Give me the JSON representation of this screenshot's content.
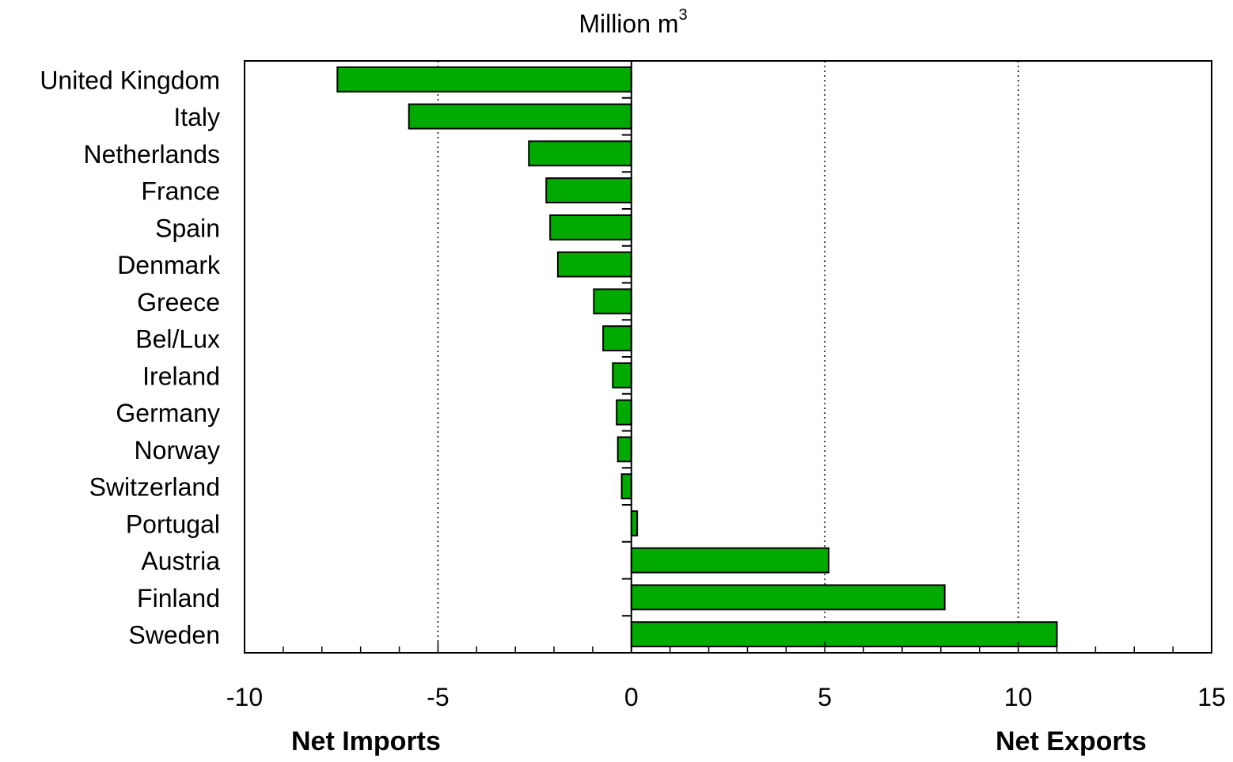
{
  "chart_data": {
    "type": "bar",
    "orientation": "horizontal",
    "title": "Million m",
    "title_superscript": "3",
    "categories": [
      "United Kingdom",
      "Italy",
      "Netherlands",
      "France",
      "Spain",
      "Denmark",
      "Greece",
      "Bel/Lux",
      "Ireland",
      "Germany",
      "Norway",
      "Switzerland",
      "Portugal",
      "Austria",
      "Finland",
      "Sweden"
    ],
    "values": [
      -7.6,
      -5.75,
      -2.65,
      -2.2,
      -2.1,
      -1.9,
      -0.97,
      -0.73,
      -0.48,
      -0.38,
      -0.35,
      -0.25,
      0.15,
      5.1,
      8.1,
      11.0
    ],
    "xlim": [
      -10,
      15
    ],
    "xticks": [
      -10,
      -5,
      0,
      5,
      10,
      15
    ],
    "xtick_labels": [
      "-10",
      "-5",
      "0",
      "5",
      "10",
      "15"
    ],
    "grid": "vertical dotted",
    "bar_color": "#00aa00",
    "left_caption": "Net Imports",
    "right_caption": "Net Exports"
  }
}
